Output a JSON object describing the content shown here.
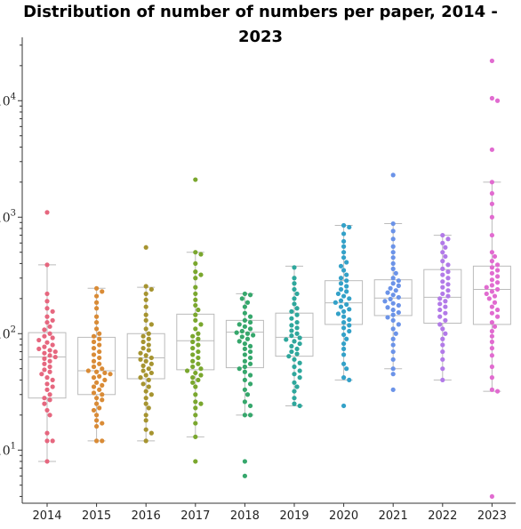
{
  "chart_data": {
    "type": "box-swarm",
    "title": "Distribution of number of numbers per paper, 2014 - 2023",
    "xlabel": "",
    "ylabel": "",
    "y_scale": "log",
    "ylim": [
      3.5,
      35000
    ],
    "y_ticks": [
      {
        "value": 10,
        "base": "10",
        "exp": "1"
      },
      {
        "value": 100,
        "base": "10",
        "exp": "2"
      },
      {
        "value": 1000,
        "base": "10",
        "exp": "3"
      },
      {
        "value": 10000,
        "base": "10",
        "exp": "4"
      }
    ],
    "grid": false,
    "box_color": "#bbbbbb",
    "series": [
      {
        "category": "2014",
        "color": "#e6677f",
        "box": {
          "q1": 28,
          "median": 63,
          "q3": 102,
          "whisker_low": 8,
          "whisker_high": 390
        },
        "points": [
          1100,
          390,
          220,
          190,
          165,
          155,
          140,
          130,
          125,
          115,
          108,
          100,
          95,
          92,
          88,
          84,
          80,
          77,
          74,
          72,
          70,
          68,
          65,
          63,
          61,
          58,
          55,
          52,
          49,
          47,
          45,
          42,
          40,
          37,
          35,
          33,
          30,
          28,
          27,
          25,
          22,
          20,
          14,
          12,
          12,
          8
        ]
      },
      {
        "category": "2015",
        "color": "#d98b36",
        "box": {
          "q1": 30,
          "median": 48,
          "q3": 93,
          "whisker_low": 12,
          "whisker_high": 245
        },
        "points": [
          245,
          230,
          210,
          185,
          165,
          140,
          125,
          110,
          100,
          95,
          90,
          85,
          80,
          75,
          70,
          66,
          62,
          58,
          55,
          52,
          50,
          48,
          47,
          46,
          45,
          43,
          42,
          40,
          38,
          36,
          35,
          33,
          31,
          30,
          28,
          27,
          25,
          23,
          22,
          20,
          18,
          17,
          16,
          12,
          12
        ]
      },
      {
        "category": "2016",
        "color": "#a69430",
        "box": {
          "q1": 41,
          "median": 62,
          "q3": 100,
          "whisker_low": 12,
          "whisker_high": 250
        },
        "points": [
          550,
          255,
          240,
          220,
          195,
          170,
          145,
          130,
          120,
          110,
          100,
          95,
          90,
          85,
          80,
          75,
          72,
          68,
          65,
          62,
          60,
          58,
          55,
          53,
          50,
          48,
          46,
          44,
          42,
          40,
          37,
          35,
          32,
          30,
          28,
          25,
          23,
          20,
          18,
          15,
          14,
          12
        ]
      },
      {
        "category": "2017",
        "color": "#7aa72e",
        "box": {
          "q1": 49,
          "median": 87,
          "q3": 147,
          "whisker_low": 13,
          "whisker_high": 500
        },
        "points": [
          2100,
          500,
          480,
          400,
          340,
          320,
          300,
          250,
          220,
          195,
          175,
          160,
          145,
          130,
          120,
          110,
          100,
          95,
          90,
          85,
          80,
          75,
          70,
          66,
          62,
          58,
          55,
          52,
          50,
          48,
          46,
          44,
          42,
          40,
          38,
          35,
          30,
          26,
          25,
          23,
          20,
          17,
          13,
          8
        ]
      },
      {
        "category": "2018",
        "color": "#36a76c",
        "box": {
          "q1": 51,
          "median": 103,
          "q3": 130,
          "whisker_low": 20,
          "whisker_high": 220
        },
        "points": [
          220,
          215,
          200,
          185,
          170,
          150,
          140,
          130,
          125,
          120,
          115,
          110,
          105,
          102,
          100,
          97,
          94,
          90,
          86,
          82,
          78,
          74,
          70,
          66,
          62,
          58,
          55,
          52,
          50,
          47,
          44,
          40,
          37,
          33,
          30,
          26,
          24,
          20,
          20,
          8,
          6
        ]
      },
      {
        "category": "2019",
        "color": "#2ea79c",
        "box": {
          "q1": 64,
          "median": 93,
          "q3": 150,
          "whisker_low": 24,
          "whisker_high": 380
        },
        "points": [
          370,
          300,
          270,
          240,
          220,
          200,
          180,
          165,
          155,
          145,
          135,
          125,
          118,
          112,
          106,
          100,
          96,
          92,
          89,
          86,
          82,
          78,
          74,
          70,
          67,
          64,
          60,
          56,
          52,
          48,
          45,
          42,
          38,
          35,
          32,
          28,
          25,
          24
        ]
      },
      {
        "category": "2020",
        "color": "#33a1c8",
        "box": {
          "q1": 120,
          "median": 184,
          "q3": 285,
          "whisker_low": 40,
          "whisker_high": 850
        },
        "points": [
          850,
          820,
          720,
          620,
          560,
          500,
          450,
          410,
          380,
          350,
          320,
          300,
          285,
          270,
          255,
          240,
          230,
          220,
          210,
          200,
          192,
          185,
          178,
          170,
          162,
          155,
          148,
          140,
          132,
          125,
          118,
          112,
          105,
          98,
          90,
          82,
          74,
          66,
          55,
          50,
          42,
          40,
          24
        ]
      },
      {
        "category": "2021",
        "color": "#6b93e8",
        "box": {
          "q1": 143,
          "median": 202,
          "q3": 290,
          "whisker_low": 50,
          "whisker_high": 880
        },
        "points": [
          2300,
          880,
          760,
          650,
          560,
          500,
          450,
          400,
          360,
          330,
          300,
          285,
          270,
          258,
          245,
          235,
          225,
          215,
          205,
          198,
          190,
          182,
          175,
          168,
          160,
          152,
          145,
          138,
          130,
          120,
          110,
          100,
          90,
          80,
          70,
          60,
          50,
          45,
          33
        ]
      },
      {
        "category": "2022",
        "color": "#b27ae8",
        "box": {
          "q1": 123,
          "median": 205,
          "q3": 355,
          "whisker_low": 40,
          "whisker_high": 700
        },
        "points": [
          700,
          650,
          600,
          550,
          500,
          460,
          420,
          390,
          360,
          340,
          320,
          300,
          280,
          265,
          250,
          235,
          220,
          210,
          200,
          190,
          180,
          170,
          160,
          150,
          140,
          130,
          120,
          110,
          100,
          90,
          80,
          70,
          60,
          50,
          40
        ]
      },
      {
        "category": "2023",
        "color": "#e16bd0",
        "box": {
          "q1": 120,
          "median": 240,
          "q3": 380,
          "whisker_low": 32,
          "whisker_high": 2000
        },
        "points": [
          22000,
          10500,
          10000,
          3800,
          2000,
          1600,
          1300,
          1000,
          700,
          500,
          460,
          420,
          390,
          370,
          350,
          330,
          310,
          290,
          275,
          260,
          250,
          240,
          230,
          220,
          210,
          200,
          185,
          170,
          160,
          150,
          140,
          125,
          115,
          105,
          95,
          85,
          75,
          65,
          52,
          42,
          33,
          32,
          4
        ]
      }
    ]
  }
}
